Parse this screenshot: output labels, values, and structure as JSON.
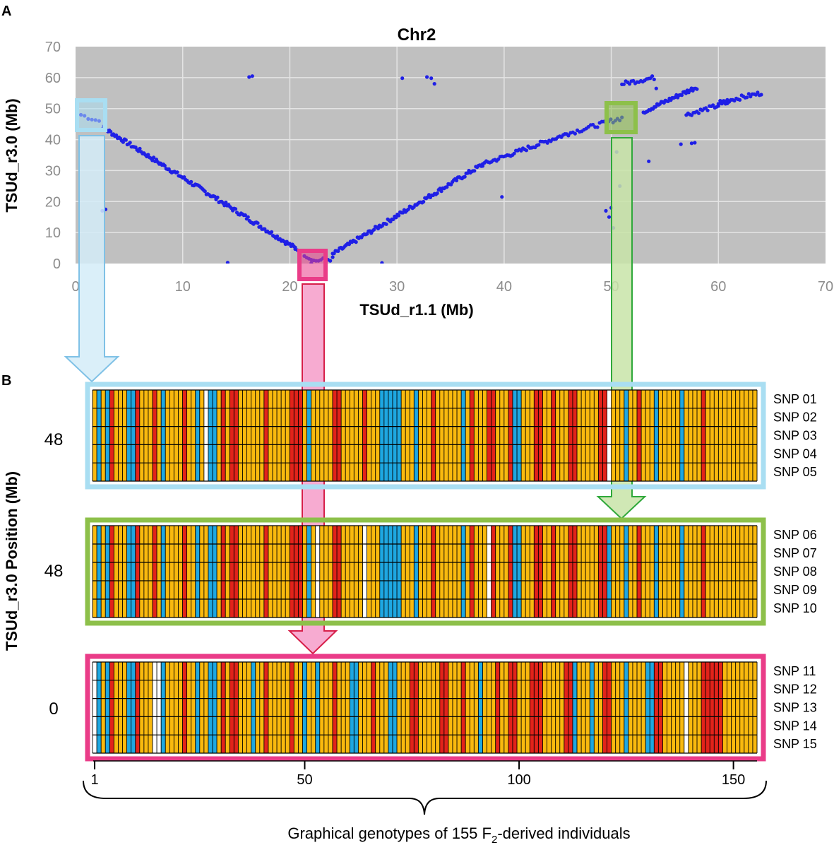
{
  "figure": {
    "panel_a_label": "A",
    "panel_b_label": "B",
    "caption": "Graphical genotypes of 155 F",
    "caption_sub": "2",
    "caption_end": "-derived individuals",
    "panel_b_ylabel": "TSUd_r3.0 Position (Mb)"
  },
  "colors": {
    "plot_bg": "#c0c0c0",
    "grid": "#e4e4e4",
    "dots": "#1f1fe6",
    "blue_box": "#a9def2",
    "green_box": "#8dc04a",
    "pink_box": "#ea3c88",
    "genotype_orange": "#f9b90e",
    "genotype_red": "#e2231a",
    "genotype_blue": "#1ea7e1",
    "genotype_white": "#ffffff"
  },
  "chart_data": [
    {
      "type": "scatter",
      "title": "Chr2",
      "xlabel": "TSUd_r1.1 (Mb)",
      "ylabel": "TSUd_r3.0 (Mb)",
      "xlim": [
        0,
        70
      ],
      "ylim": [
        0,
        70
      ],
      "xticks": [
        0,
        10,
        20,
        30,
        40,
        50,
        60,
        70
      ],
      "yticks": [
        0,
        10,
        20,
        30,
        40,
        50,
        60,
        70
      ],
      "grid": true,
      "segments": [
        {
          "from": [
            0.5,
            48
          ],
          "to": [
            2.2,
            46
          ],
          "n": 6
        },
        {
          "from": [
            2.5,
            44
          ],
          "to": [
            20.5,
            5
          ],
          "n": 140
        },
        {
          "from": [
            20.5,
            5
          ],
          "to": [
            22,
            1.5
          ],
          "n": 8
        },
        {
          "from": [
            22,
            0.8
          ],
          "to": [
            24,
            1.5
          ],
          "n": 10
        },
        {
          "from": [
            24,
            3
          ],
          "to": [
            38,
            32
          ],
          "n": 110
        },
        {
          "from": [
            38,
            32
          ],
          "to": [
            46,
            42
          ],
          "n": 50
        },
        {
          "from": [
            46,
            42
          ],
          "to": [
            51,
            47
          ],
          "n": 25
        },
        {
          "from": [
            51,
            58
          ],
          "to": [
            54,
            60
          ],
          "n": 18
        },
        {
          "from": [
            53,
            49
          ],
          "to": [
            58,
            57
          ],
          "n": 40
        },
        {
          "from": [
            57,
            48
          ],
          "to": [
            61,
            52
          ],
          "n": 25
        },
        {
          "from": [
            60,
            52
          ],
          "to": [
            64,
            55
          ],
          "n": 25
        }
      ],
      "points": [
        {
          "x": 2.5,
          "y": 17
        },
        {
          "x": 2.8,
          "y": 17.5
        },
        {
          "x": 14.2,
          "y": 0.3
        },
        {
          "x": 16.2,
          "y": 60.2
        },
        {
          "x": 16.5,
          "y": 60.5
        },
        {
          "x": 28.6,
          "y": 0.2
        },
        {
          "x": 30.5,
          "y": 59.8
        },
        {
          "x": 32.8,
          "y": 60.2
        },
        {
          "x": 33.2,
          "y": 59.8
        },
        {
          "x": 33.5,
          "y": 58
        },
        {
          "x": 39.8,
          "y": 21.5
        },
        {
          "x": 49.5,
          "y": 17
        },
        {
          "x": 49.8,
          "y": 15
        },
        {
          "x": 50,
          "y": 18
        },
        {
          "x": 50.2,
          "y": 11.5
        },
        {
          "x": 50.8,
          "y": 25
        },
        {
          "x": 50.5,
          "y": 36
        },
        {
          "x": 56.5,
          "y": 38.5
        },
        {
          "x": 57.5,
          "y": 38.8
        },
        {
          "x": 57.8,
          "y": 39
        },
        {
          "x": 53.5,
          "y": 33
        },
        {
          "x": 54.2,
          "y": 56.5
        }
      ],
      "highlights": [
        {
          "name": "blue",
          "x": [
            0,
            2.5
          ],
          "y": [
            44,
            51
          ]
        },
        {
          "name": "pink",
          "x": [
            20.5,
            23.5
          ],
          "y": [
            -1.5,
            3.5
          ]
        },
        {
          "name": "green",
          "x": [
            49.5,
            52
          ],
          "y": [
            43,
            50
          ]
        }
      ]
    },
    {
      "type": "heatmap",
      "title": "Graphical genotypes",
      "xlabel": "Graphical genotypes of 155 F2-derived individuals",
      "ylabel": "TSUd_r3.0 Position (Mb)",
      "individuals": 155,
      "x_ticks": [
        1,
        50,
        100,
        150
      ],
      "groups": [
        {
          "position_label": "48",
          "snps": [
            "SNP 01",
            "SNP 02",
            "SNP 03",
            "SNP 04",
            "SNP 05"
          ],
          "genotypes": "OBOBROOOBBROOOROBOOOOROOBOWBBORORROOOOOOROOOOORRROBOOOOORROOOOOROOOBBBBBOOOBOOOROOOOOOBOROOORROOORBBOOORROOROOORROOOOORRWOOOBOOROOOBOOOOOBOOOOROOOOOOOO"
        },
        {
          "position_label": "48",
          "snps": [
            "SNP 06",
            "SNP 07",
            "SNP 08",
            "SNP 09",
            "SNP 10"
          ],
          "genotypes": "OBOBROOOBBROOOROBOOOOROOBOOBBORORROOOOOOROOOOORRROBOWOOORROOOOOWOOOBBBBBOOOBOOOROOOOOOBOROOOWROOORBBOOORROOROOORROOOOORRBOOOBOOROOOBOOOOOBOOOOROOOOOOOO"
        },
        {
          "position_label": "0",
          "snps": [
            "SNP 11",
            "SNP 12",
            "SNP 13",
            "SNP 14",
            "SNP 15"
          ],
          "genotypes": "WBOBROOOBBROOOWWBOOOOROOBOOBBORORROOOBOOROOOOOROOBOOBOOOROOOBBOOOROOOBBOOORROOOOORROOOROOOBOOOROORROOORRROOOOORRBOOOBOORROOOBOOOOBBRROOOOOWOOORRRRROOOOOOOO"
        }
      ]
    }
  ]
}
